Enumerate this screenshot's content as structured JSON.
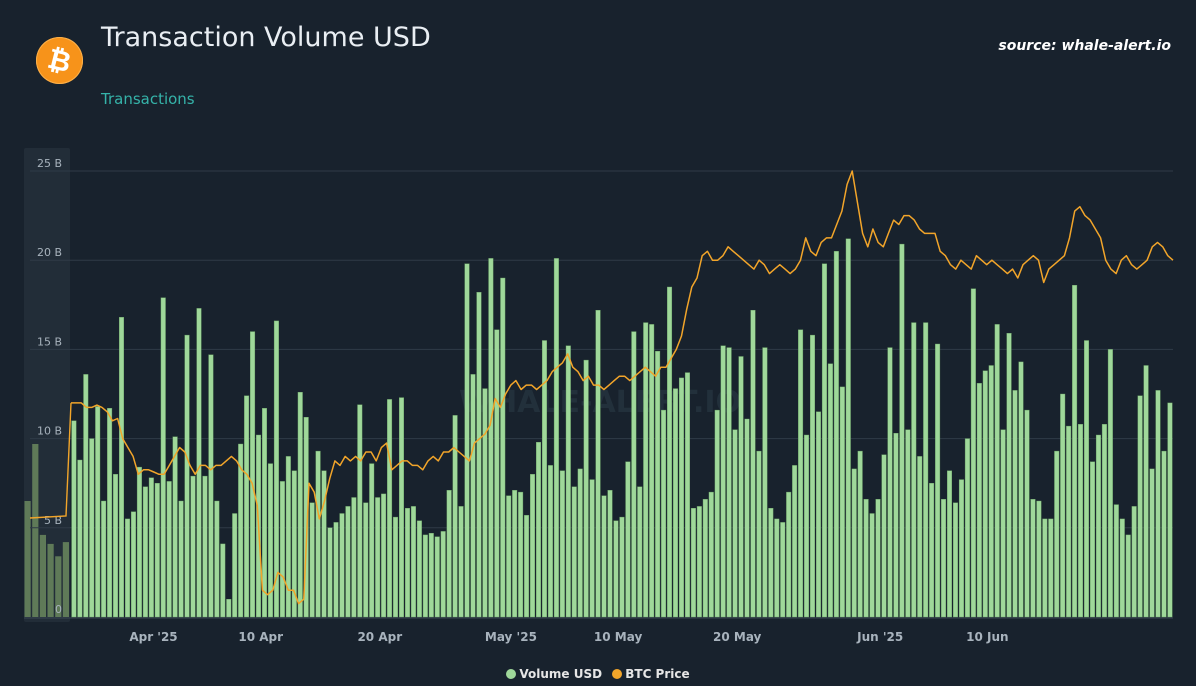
{
  "header": {
    "title": "Transaction Volume USD",
    "subtitle": "Transactions",
    "source": "source: whale-alert.io",
    "logo_glyph": "₿",
    "logo_icon": "bitcoin-logo-icon"
  },
  "watermark": "WHALE-ALERT.IO",
  "colors": {
    "background": "#18222d",
    "bars": "#9fd89a",
    "price_line": "#f2a52a",
    "navigator_bars": "#5f7a58",
    "grid": "#2f3b47",
    "axis_text": "#a8b3bd"
  },
  "legend": [
    {
      "label": "Volume USD",
      "color": "#9fd89a"
    },
    {
      "label": "BTC Price",
      "color": "#f2a52a"
    }
  ],
  "chart_data": {
    "type": "bar",
    "title": "Transaction Volume USD",
    "y_ticks": [
      "0",
      "5 B",
      "10 B",
      "15 B",
      "20 B",
      "25 B"
    ],
    "ylim": [
      0,
      25
    ],
    "x_ticks": [
      {
        "label": "Apr '25",
        "day": 6
      },
      {
        "label": "10 Apr",
        "day": 15
      },
      {
        "label": "20 Apr",
        "day": 25
      },
      {
        "label": "May '25",
        "day": 36
      },
      {
        "label": "10 May",
        "day": 45
      },
      {
        "label": "20 May",
        "day": 55
      },
      {
        "label": "Jun '25",
        "day": 67
      },
      {
        "label": "10 Jun",
        "day": 76
      }
    ],
    "x_days_per_bar": 0.5,
    "grid": "horizontal",
    "legend_position": "bottom-center",
    "series": [
      {
        "name": "Volume USD",
        "type": "bar",
        "unit": "B USD",
        "values": [
          11.0,
          8.8,
          13.6,
          10.0,
          11.8,
          6.5,
          11.7,
          8.0,
          16.8,
          5.5,
          5.9,
          8.4,
          7.3,
          7.8,
          7.5,
          17.9,
          7.6,
          10.1,
          6.5,
          15.8,
          7.9,
          17.3,
          7.9,
          14.7,
          6.5,
          4.1,
          1.0,
          5.8,
          9.7,
          12.4,
          16.0,
          10.2,
          11.7,
          8.6,
          16.6,
          7.6,
          9.0,
          8.2,
          12.6,
          11.2,
          6.4,
          9.3,
          8.2,
          5.0,
          5.3,
          5.8,
          6.2,
          6.7,
          11.9,
          6.4,
          8.6,
          6.7,
          6.9,
          12.2,
          5.6,
          12.3,
          6.1,
          6.2,
          5.4,
          4.6,
          4.7,
          4.5,
          4.8,
          7.1,
          11.3,
          6.2,
          19.8,
          13.6,
          18.2,
          12.8,
          20.1,
          16.1,
          19.0,
          6.8,
          7.1,
          7.0,
          5.7,
          8.0,
          9.8,
          15.5,
          8.5,
          20.1,
          8.2,
          15.2,
          7.3,
          8.3,
          14.4,
          7.7,
          17.2,
          6.8,
          7.1,
          5.4,
          5.6,
          8.7,
          16.0,
          7.3,
          16.5,
          16.4,
          14.9,
          11.6,
          18.5,
          12.8,
          13.4,
          13.7,
          6.1,
          6.2,
          6.6,
          7.0,
          11.6,
          15.2,
          15.1,
          10.5,
          14.6,
          11.1,
          17.2,
          9.3,
          15.1,
          6.1,
          5.5,
          5.3,
          7.0,
          8.5,
          16.1,
          10.2,
          15.8,
          11.5,
          19.8,
          14.2,
          20.5,
          12.9,
          21.2,
          8.3,
          9.3,
          6.6,
          5.8,
          6.6,
          9.1,
          15.1,
          10.3,
          20.9,
          10.5,
          16.5,
          9.0,
          16.5,
          7.5,
          15.3,
          6.6,
          8.2,
          6.4,
          7.7,
          10.0,
          18.4,
          13.1,
          13.8,
          14.1,
          16.4,
          10.5,
          15.9,
          12.7,
          14.3,
          11.6,
          6.6,
          6.5,
          5.5,
          5.5,
          9.3,
          12.5,
          10.7,
          18.6,
          10.8,
          15.5,
          8.7,
          10.2,
          10.8,
          15.0,
          6.3,
          5.5,
          4.6,
          6.2,
          12.4,
          14.1,
          8.3,
          12.7,
          9.3,
          12.0
        ]
      },
      {
        "name": "BTC Price",
        "type": "line",
        "axis": "secondary",
        "values": [
          0.48,
          0.48,
          0.48,
          0.47,
          0.47,
          0.475,
          0.47,
          0.46,
          0.44,
          0.445,
          0.4,
          0.38,
          0.36,
          0.32,
          0.33,
          0.33,
          0.325,
          0.32,
          0.32,
          0.34,
          0.36,
          0.38,
          0.37,
          0.34,
          0.32,
          0.34,
          0.34,
          0.33,
          0.34,
          0.34,
          0.35,
          0.36,
          0.35,
          0.33,
          0.32,
          0.3,
          0.25,
          0.06,
          0.05,
          0.06,
          0.1,
          0.09,
          0.06,
          0.06,
          0.03,
          0.04,
          0.3,
          0.28,
          0.22,
          0.26,
          0.31,
          0.35,
          0.34,
          0.36,
          0.35,
          0.36,
          0.35,
          0.37,
          0.37,
          0.35,
          0.38,
          0.39,
          0.33,
          0.34,
          0.35,
          0.35,
          0.34,
          0.34,
          0.33,
          0.35,
          0.36,
          0.35,
          0.37,
          0.37,
          0.38,
          0.37,
          0.36,
          0.35,
          0.39,
          0.4,
          0.41,
          0.43,
          0.49,
          0.47,
          0.5,
          0.52,
          0.53,
          0.51,
          0.52,
          0.52,
          0.51,
          0.52,
          0.53,
          0.55,
          0.56,
          0.57,
          0.59,
          0.56,
          0.55,
          0.53,
          0.54,
          0.52,
          0.52,
          0.51,
          0.52,
          0.53,
          0.54,
          0.54,
          0.53,
          0.54,
          0.55,
          0.56,
          0.55,
          0.54,
          0.56,
          0.56,
          0.58,
          0.6,
          0.63,
          0.69,
          0.74,
          0.76,
          0.81,
          0.82,
          0.8,
          0.8,
          0.81,
          0.83,
          0.82,
          0.81,
          0.8,
          0.79,
          0.78,
          0.8,
          0.79,
          0.77,
          0.78,
          0.79,
          0.78,
          0.77,
          0.78,
          0.8,
          0.85,
          0.82,
          0.81,
          0.84,
          0.85,
          0.85,
          0.88,
          0.91,
          0.97,
          1.0,
          0.93,
          0.86,
          0.83,
          0.87,
          0.84,
          0.83,
          0.86,
          0.89,
          0.88,
          0.9,
          0.9,
          0.89,
          0.87,
          0.86,
          0.86,
          0.86,
          0.82,
          0.81,
          0.79,
          0.78,
          0.8,
          0.79,
          0.78,
          0.81,
          0.8,
          0.79,
          0.8,
          0.79,
          0.78,
          0.77,
          0.78,
          0.76,
          0.79,
          0.8,
          0.81,
          0.8,
          0.75,
          0.78,
          0.79,
          0.8,
          0.81,
          0.85,
          0.91,
          0.92,
          0.9,
          0.89,
          0.87,
          0.85,
          0.8,
          0.78,
          0.77,
          0.8,
          0.81,
          0.79,
          0.78,
          0.79,
          0.8,
          0.83,
          0.84,
          0.83,
          0.81,
          0.8
        ]
      }
    ],
    "navigator_values": [
      6.5,
      9.7,
      4.6,
      4.1,
      3.4,
      4.2
    ]
  }
}
